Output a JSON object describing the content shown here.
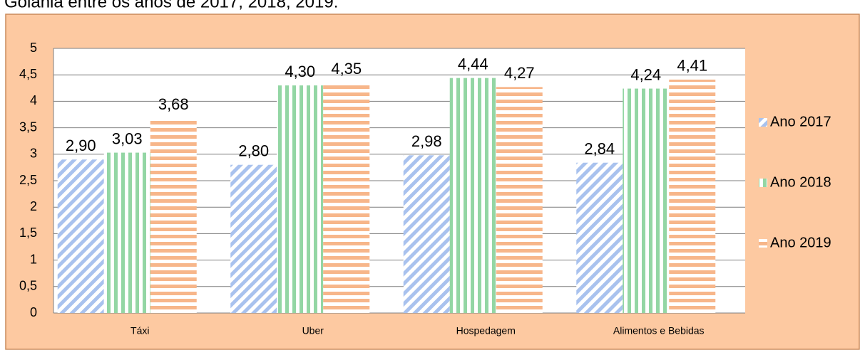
{
  "chart_data": {
    "type": "bar",
    "title": "Goiânia entre os anos de 2017, 2018, 2019.",
    "categories": [
      "Táxi",
      "Uber",
      "Hospedagem",
      "Alimentos e Bebidas"
    ],
    "series": [
      {
        "name": "Ano 2017",
        "color": "#a9c2ee",
        "values": [
          2.9,
          2.8,
          2.98,
          2.84
        ],
        "value_labels": [
          "2,90",
          "2,80",
          "2,98",
          "2,84"
        ]
      },
      {
        "name": "Ano 2018",
        "color": "#93d6a4",
        "values": [
          3.03,
          4.3,
          4.44,
          4.24
        ],
        "value_labels": [
          "3,03",
          "4,30",
          "4,44",
          "4,24"
        ]
      },
      {
        "name": "Ano 2019",
        "color": "#f7b68a",
        "values": [
          3.68,
          4.35,
          4.27,
          4.41
        ],
        "value_labels": [
          "3,68",
          "4,35",
          "4,27",
          "4,41"
        ]
      }
    ],
    "ylim": [
      0,
      5
    ],
    "yticks": [
      0,
      {
        "value": 0.5,
        "label": "0,5"
      },
      1,
      {
        "value": 1.5,
        "label": "1,5"
      },
      2,
      {
        "value": 2.5,
        "label": "2,5"
      },
      3,
      {
        "value": 3.5,
        "label": "3,5"
      },
      4,
      {
        "value": 4.5,
        "label": "4,5"
      },
      5
    ],
    "grid": true,
    "legend": "right"
  }
}
